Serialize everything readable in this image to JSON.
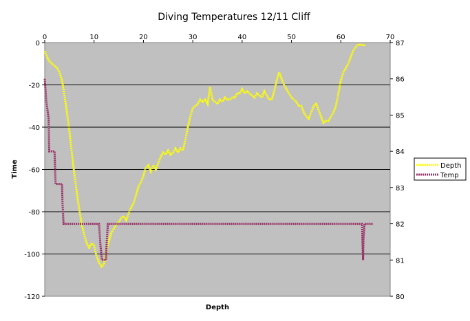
{
  "chart_data": {
    "type": "line",
    "title": "Diving Temperatures 12/11 Cliff",
    "xlabel": "Depth",
    "ylabel": "Time",
    "xlim": [
      0,
      70
    ],
    "x_ticks": [
      0,
      10,
      20,
      30,
      40,
      50,
      60,
      70
    ],
    "ylim": [
      -120,
      0
    ],
    "y_ticks": [
      0,
      -20,
      -40,
      -60,
      -80,
      -100,
      -120
    ],
    "y2lim": [
      80,
      87
    ],
    "y2_ticks": [
      87,
      86,
      85,
      84,
      83,
      82,
      81,
      80
    ],
    "grid": "horizontal",
    "plot_background": "#c0c0c0",
    "legend_position": "right",
    "series": [
      {
        "name": "Depth",
        "axis": "left",
        "color": "#ffff00",
        "points": [
          [
            0,
            -4
          ],
          [
            0.5,
            -7
          ],
          [
            1,
            -9
          ],
          [
            1.5,
            -10
          ],
          [
            2,
            -11
          ],
          [
            2.5,
            -12
          ],
          [
            3,
            -14
          ],
          [
            3.5,
            -18
          ],
          [
            4,
            -25
          ],
          [
            4.5,
            -33
          ],
          [
            5,
            -42
          ],
          [
            5.5,
            -52
          ],
          [
            6,
            -62
          ],
          [
            6.5,
            -71
          ],
          [
            7,
            -79
          ],
          [
            7.5,
            -86
          ],
          [
            8,
            -91
          ],
          [
            8.5,
            -95
          ],
          [
            9,
            -97
          ],
          [
            9.5,
            -95
          ],
          [
            10,
            -96
          ],
          [
            10.5,
            -101
          ],
          [
            11,
            -104
          ],
          [
            11.5,
            -106
          ],
          [
            12,
            -105
          ],
          [
            12.5,
            -99
          ],
          [
            13,
            -94
          ],
          [
            13.5,
            -90
          ],
          [
            14,
            -88
          ],
          [
            14.5,
            -86
          ],
          [
            15,
            -85
          ],
          [
            15.5,
            -83
          ],
          [
            16,
            -82
          ],
          [
            16.5,
            -84
          ],
          [
            17,
            -81
          ],
          [
            17.5,
            -78
          ],
          [
            18,
            -76
          ],
          [
            18.5,
            -72
          ],
          [
            19,
            -68
          ],
          [
            19.5,
            -66
          ],
          [
            20,
            -63
          ],
          [
            20.5,
            -59
          ],
          [
            21,
            -58
          ],
          [
            21.5,
            -61
          ],
          [
            22,
            -58
          ],
          [
            22.5,
            -60
          ],
          [
            23,
            -57
          ],
          [
            23.5,
            -54
          ],
          [
            24,
            -52
          ],
          [
            24.5,
            -53
          ],
          [
            25,
            -51
          ],
          [
            25.5,
            -53
          ],
          [
            26,
            -52
          ],
          [
            26.5,
            -50
          ],
          [
            27,
            -52
          ],
          [
            27.5,
            -50
          ],
          [
            28,
            -51
          ],
          [
            28.5,
            -46
          ],
          [
            29,
            -40
          ],
          [
            29.5,
            -35
          ],
          [
            30,
            -31
          ],
          [
            30.5,
            -30
          ],
          [
            31,
            -29
          ],
          [
            31.5,
            -27
          ],
          [
            32,
            -28
          ],
          [
            32.5,
            -27
          ],
          [
            33,
            -29
          ],
          [
            33.5,
            -21
          ],
          [
            34,
            -27
          ],
          [
            34.5,
            -28
          ],
          [
            35,
            -29
          ],
          [
            35.5,
            -27
          ],
          [
            36,
            -28
          ],
          [
            36.5,
            -26
          ],
          [
            37,
            -27
          ],
          [
            37.5,
            -27
          ],
          [
            38,
            -26
          ],
          [
            38.5,
            -26
          ],
          [
            39,
            -24
          ],
          [
            39.5,
            -24
          ],
          [
            40,
            -22
          ],
          [
            40.5,
            -24
          ],
          [
            41,
            -23
          ],
          [
            41.5,
            -24
          ],
          [
            42,
            -25
          ],
          [
            42.5,
            -26
          ],
          [
            43,
            -24
          ],
          [
            43.5,
            -25
          ],
          [
            44,
            -26
          ],
          [
            44.5,
            -23
          ],
          [
            45,
            -25
          ],
          [
            45.5,
            -27
          ],
          [
            46,
            -27
          ],
          [
            46.5,
            -23
          ],
          [
            47,
            -18
          ],
          [
            47.5,
            -14
          ],
          [
            48,
            -17
          ],
          [
            48.5,
            -20
          ],
          [
            49,
            -22
          ],
          [
            49.5,
            -24
          ],
          [
            50,
            -26
          ],
          [
            50.5,
            -27
          ],
          [
            51,
            -28
          ],
          [
            51.5,
            -30
          ],
          [
            52,
            -30
          ],
          [
            52.5,
            -33
          ],
          [
            53,
            -35
          ],
          [
            53.5,
            -36
          ],
          [
            54,
            -33
          ],
          [
            54.5,
            -30
          ],
          [
            55,
            -29
          ],
          [
            55.5,
            -32
          ],
          [
            56,
            -35
          ],
          [
            56.5,
            -38
          ],
          [
            57,
            -37
          ],
          [
            57.5,
            -37
          ],
          [
            58,
            -35
          ],
          [
            58.5,
            -33
          ],
          [
            59,
            -30
          ],
          [
            59.5,
            -24
          ],
          [
            60,
            -18
          ],
          [
            60.5,
            -14
          ],
          [
            61,
            -12
          ],
          [
            61.5,
            -10
          ],
          [
            62,
            -7
          ],
          [
            62.5,
            -4
          ],
          [
            63,
            -2
          ],
          [
            63.5,
            -1
          ],
          [
            64,
            -1
          ],
          [
            64.5,
            -1
          ],
          [
            65,
            -1.5
          ]
        ]
      },
      {
        "name": "Temp",
        "axis": "right",
        "color": "#993366",
        "points": [
          [
            0,
            86
          ],
          [
            0.3,
            85.4
          ],
          [
            0.6,
            85.1
          ],
          [
            0.8,
            84.9
          ],
          [
            0.9,
            84
          ],
          [
            2,
            84
          ],
          [
            2.1,
            83.5
          ],
          [
            2.2,
            83.1
          ],
          [
            3.5,
            83.1
          ],
          [
            3.6,
            82.6
          ],
          [
            3.8,
            82
          ],
          [
            11,
            82
          ],
          [
            11.3,
            81.4
          ],
          [
            11.6,
            81
          ],
          [
            12.4,
            81
          ],
          [
            12.6,
            81.6
          ],
          [
            12.8,
            82
          ],
          [
            64.3,
            82
          ],
          [
            64.4,
            81.5
          ],
          [
            64.5,
            81
          ],
          [
            64.6,
            81.6
          ],
          [
            64.8,
            82
          ],
          [
            66.5,
            82
          ]
        ]
      }
    ]
  }
}
